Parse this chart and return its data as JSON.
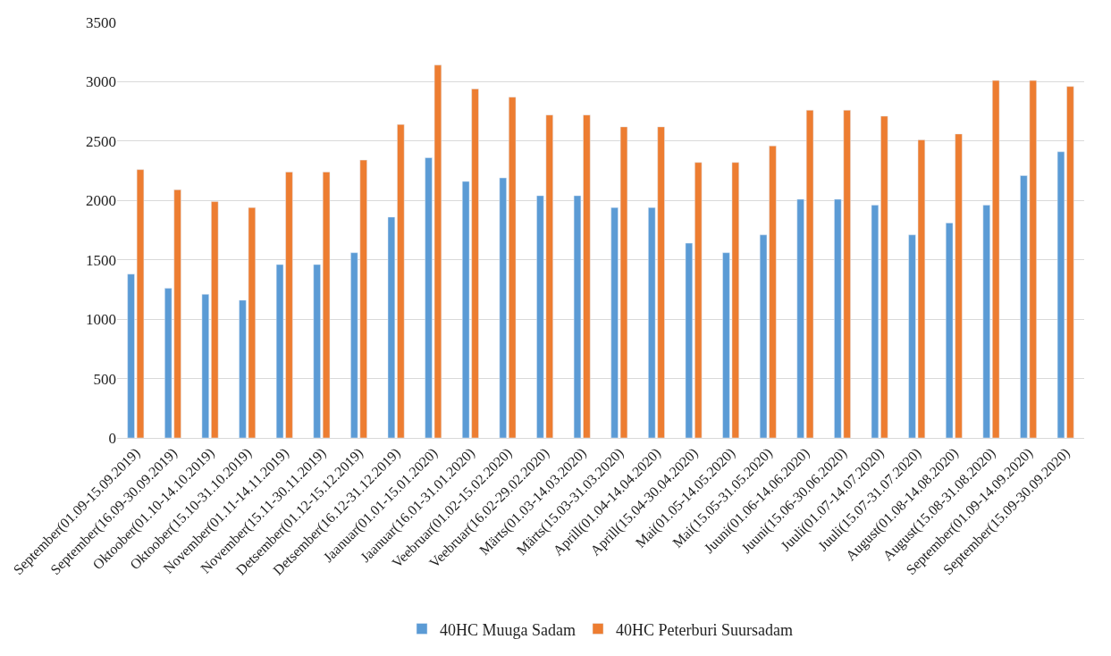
{
  "chart_data": {
    "type": "bar",
    "categories": [
      "September(01.09-15.09.2019)",
      "September(16.09-30.09.2019)",
      "Oktoober(01.10-14.10.2019)",
      "Oktoober(15.10-31.10.2019)",
      "November(01.11-14.11.2019)",
      "November(15.11-30.11.2019)",
      "Detsember(01.12-15.12.2019)",
      "Detsember(16.12-31.12.2019)",
      "Jaanuar(01.01-15.01.2020)",
      "Jaanuar(16.01-31.01.2020)",
      "Veebruar(01.02-15.02.2020)",
      "Veebruar(16.02-29.02.2020)",
      "Märts(01.03-14.03.2020)",
      "Märts(15.03-31.03.2020)",
      "Aprill(01.04-14.04.2020)",
      "Aprill(15.04-30.04.2020)",
      "Mai(01.05-14.05.2020)",
      "Mai(15.05-31.05.2020)",
      "Juuni(01.06-14.06.2020)",
      "Juuni(15.06-30.06.2020)",
      "Juuli(01.07-14.07.2020)",
      "Juuli(15.07-31.07.2020)",
      "August(01.08-14.08.2020)",
      "August(15.08-31.08.2020)",
      "September(01.09-14.09.2020)",
      "September(15.09-30.09.2020)"
    ],
    "series": [
      {
        "name": "40HC Muuga Sadam",
        "color": "#5b9bd5",
        "values": [
          1380,
          1260,
          1210,
          1160,
          1460,
          1460,
          1560,
          1860,
          2360,
          2160,
          2190,
          2040,
          2040,
          1940,
          1940,
          1640,
          1560,
          1710,
          2010,
          2010,
          1960,
          1710,
          1810,
          1960,
          2210,
          2410
        ]
      },
      {
        "name": "40HC Peterburi Suursadam",
        "color": "#ed7d31",
        "values": [
          2260,
          2090,
          1990,
          1940,
          2240,
          2240,
          2340,
          2640,
          3140,
          2940,
          2870,
          2720,
          2720,
          2620,
          2620,
          2320,
          2320,
          2460,
          2760,
          2760,
          2710,
          2510,
          2560,
          3010,
          3010,
          2960
        ]
      }
    ],
    "ylim": [
      0,
      3500
    ],
    "yticks": [
      0,
      500,
      1000,
      1500,
      2000,
      2500,
      3000,
      3500
    ],
    "grid": "y",
    "legend": "bottom"
  }
}
